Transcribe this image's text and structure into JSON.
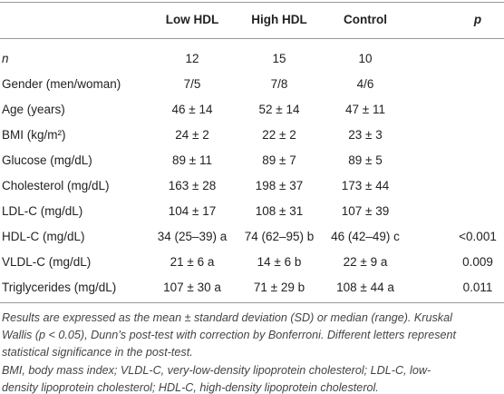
{
  "table": {
    "header": [
      "Low HDL",
      "High HDL",
      "Control",
      "p"
    ],
    "rows": [
      [
        "n",
        "12",
        "15",
        "10"
      ],
      [
        "Gender (men/woman)",
        "7/5",
        "7/8",
        "4/6"
      ],
      [
        "Age (years)",
        "46 ± 14",
        "52 ± 14",
        "47 ± 11"
      ],
      [
        "BMI (kg/m²)",
        "24 ± 2",
        "22 ± 2",
        "23 ± 3"
      ],
      [
        "Glucose (mg/dL)",
        "89 ± 11",
        "89 ± 7",
        "89 ± 5"
      ],
      [
        "Cholesterol (mg/dL)",
        "163 ± 28",
        "198 ± 37",
        "173 ± 44"
      ],
      [
        "LDL-C (mg/dL)",
        "104 ± 17",
        "108 ± 31",
        "107 ± 39"
      ],
      [
        "HDL-C (mg/dL)",
        "34 (25–39) a",
        "74 (62–95) b",
        "46 (42–49) c",
        "<0.001"
      ],
      [
        "VLDL-C (mg/dL)",
        "21 ± 6 a",
        "14 ± 6 b",
        "22 ± 9 a",
        "0.009"
      ],
      [
        "Triglycerides (mg/dL)",
        "107 ± 30 a",
        "71 ± 29 b",
        "108 ± 44 a",
        "0.011"
      ]
    ]
  },
  "footnotes": [
    [
      "Results are expressed as the mean ± standard deviation (SD) or median (range). Kruskal",
      "Wallis (p < 0.05), Dunn’s post-test with correction by Bonferroni. Different letters represent",
      "statistical significance in the post-test."
    ],
    [
      "BMI, body mass index; VLDL-C, very-low-density lipoprotein cholesterol; LDL-C, low-",
      "density lipoprotein cholesterol; HDL-C, high-density lipoprotein cholesterol."
    ]
  ]
}
